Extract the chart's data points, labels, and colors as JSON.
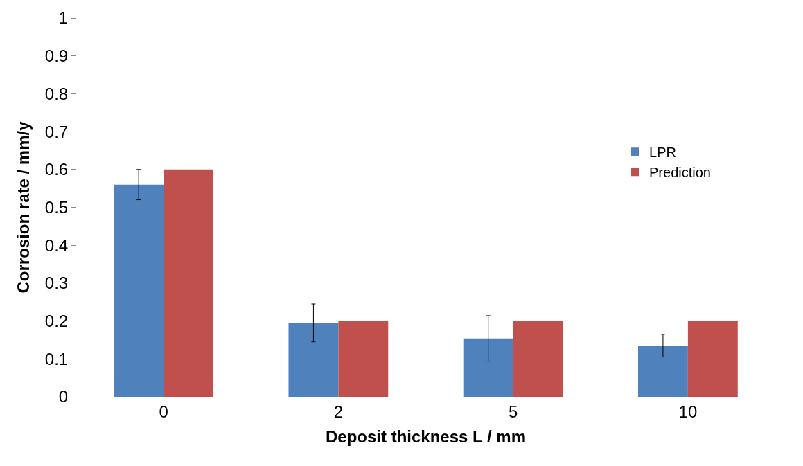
{
  "chart_data": {
    "type": "bar",
    "xlabel": "Deposit thickness L / mm",
    "ylabel": "Corrosion rate / mm/y",
    "categories": [
      "0",
      "2",
      "5",
      "10"
    ],
    "series": [
      {
        "name": "LPR",
        "color": "#4f81bd",
        "values": [
          0.56,
          0.195,
          0.154,
          0.135
        ],
        "errors": [
          0.04,
          0.05,
          0.06,
          0.03
        ]
      },
      {
        "name": "Prediction",
        "color": "#c0504d",
        "values": [
          0.6,
          0.2,
          0.2,
          0.2
        ]
      }
    ],
    "ylim": [
      0,
      1
    ],
    "yticks": [
      0,
      0.1,
      0.2,
      0.3,
      0.4,
      0.5,
      0.6,
      0.7,
      0.8,
      0.9,
      1
    ],
    "legend": "right"
  }
}
